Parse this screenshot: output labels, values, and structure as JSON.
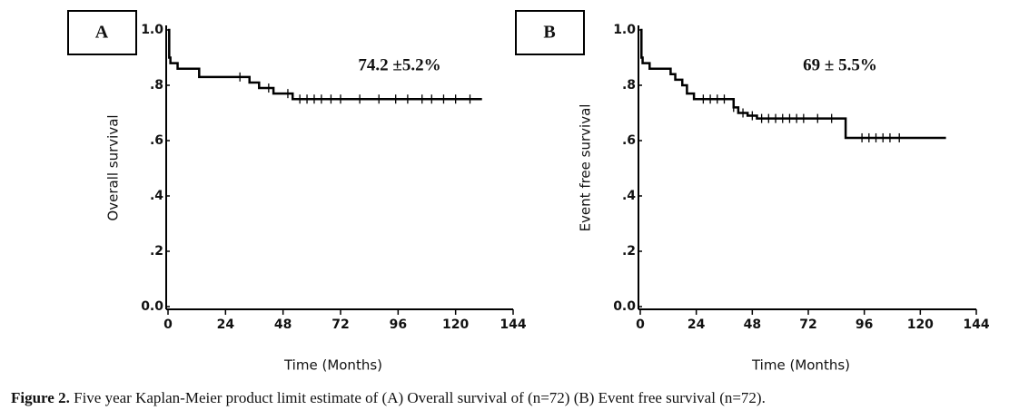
{
  "chart_data": [
    {
      "type": "step",
      "panel_label": "A",
      "annotation": "74.2 ±5.2%",
      "ylabel": "Overall survival",
      "xlabel": "Time (Months)",
      "x": [
        0,
        0.5,
        1,
        4,
        13,
        34,
        38,
        44,
        52,
        131
      ],
      "values": [
        1.0,
        0.9,
        0.88,
        0.86,
        0.83,
        0.81,
        0.79,
        0.77,
        0.75,
        0.75
      ],
      "censored_x": [
        30,
        42,
        50,
        55,
        58,
        61,
        64,
        68,
        72,
        80,
        88,
        95,
        100,
        106,
        110,
        115,
        120,
        126
      ],
      "censored_values": [
        0.83,
        0.79,
        0.77,
        0.75,
        0.75,
        0.75,
        0.75,
        0.75,
        0.75,
        0.75,
        0.75,
        0.75,
        0.75,
        0.75,
        0.75,
        0.75,
        0.75,
        0.75
      ],
      "color": "#000000",
      "xlim": [
        0,
        144
      ],
      "ylim": [
        0,
        1
      ],
      "xticks": [
        0,
        24,
        48,
        72,
        96,
        120,
        144
      ],
      "yticks": [
        {
          "value": 0,
          "label": "0.0"
        },
        {
          "value": 0.2,
          "label": ".2"
        },
        {
          "value": 0.4,
          "label": ".4"
        },
        {
          "value": 0.6,
          "label": ".6"
        },
        {
          "value": 0.8,
          "label": ".8"
        },
        {
          "value": 1,
          "label": "1.0"
        }
      ]
    },
    {
      "type": "step",
      "panel_label": "B",
      "annotation": "69 ± 5.5%",
      "ylabel": "Event free survival",
      "xlabel": "Time (Months)",
      "x": [
        0,
        0.5,
        1,
        4,
        13,
        15,
        18,
        20,
        23,
        40,
        42,
        46,
        50,
        88,
        131
      ],
      "values": [
        1.0,
        0.9,
        0.88,
        0.86,
        0.84,
        0.82,
        0.8,
        0.77,
        0.75,
        0.72,
        0.7,
        0.69,
        0.68,
        0.61,
        0.61
      ],
      "censored_x": [
        27,
        30,
        33,
        36,
        40,
        44,
        48,
        52,
        55,
        58,
        61,
        64,
        67,
        70,
        76,
        82,
        95,
        98,
        101,
        104,
        107,
        111
      ],
      "censored_values": [
        0.75,
        0.75,
        0.75,
        0.75,
        0.72,
        0.7,
        0.69,
        0.68,
        0.68,
        0.68,
        0.68,
        0.68,
        0.68,
        0.68,
        0.68,
        0.68,
        0.61,
        0.61,
        0.61,
        0.61,
        0.61,
        0.61
      ],
      "color": "#000000",
      "xlim": [
        0,
        144
      ],
      "ylim": [
        0,
        1
      ],
      "xticks": [
        0,
        24,
        48,
        72,
        96,
        120,
        144
      ],
      "yticks": [
        {
          "value": 0,
          "label": "0.0"
        },
        {
          "value": 0.2,
          "label": ".2"
        },
        {
          "value": 0.4,
          "label": ".4"
        },
        {
          "value": 0.6,
          "label": ".6"
        },
        {
          "value": 0.8,
          "label": ".8"
        },
        {
          "value": 1,
          "label": "1.0"
        }
      ]
    }
  ],
  "caption_label": "Figure 2.",
  "caption_text": "Five year Kaplan-Meier product limit estimate of (A) Overall survival of (n=72) (B) Event free survival (n=72)."
}
